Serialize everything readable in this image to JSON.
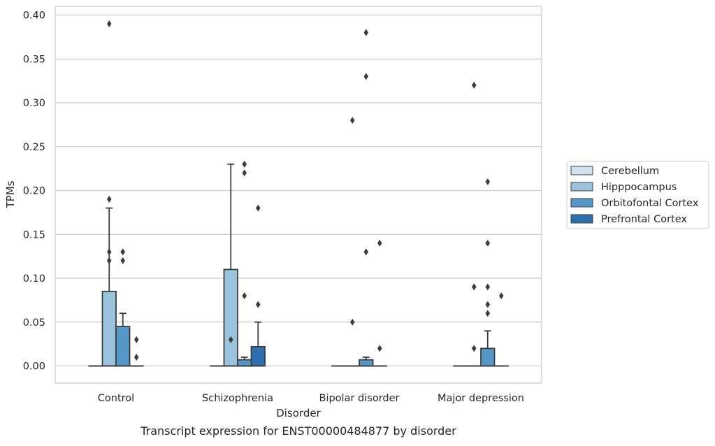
{
  "chart_data": {
    "type": "box",
    "caption": "Transcript expression for ENST00000484877 by disorder",
    "xlabel": "Disorder",
    "ylabel": "TPMs",
    "ylim": [
      -0.02,
      0.41
    ],
    "yticks": [
      "0.00",
      "0.05",
      "0.10",
      "0.15",
      "0.20",
      "0.25",
      "0.30",
      "0.35",
      "0.40"
    ],
    "ytick_values": [
      0,
      0.05,
      0.1,
      0.15,
      0.2,
      0.25,
      0.3,
      0.35,
      0.4
    ],
    "grid": "horizontal",
    "legend_placement": "right",
    "categories": [
      "Control",
      "Schizophrenia",
      "Bipolar disorder",
      "Major depression"
    ],
    "series": [
      {
        "name": "Cerebellum",
        "color": "#d1e1ef",
        "boxes": [
          {
            "min": 0,
            "q1": 0,
            "median": 0,
            "q3": 0,
            "max": 0,
            "outliers": []
          },
          {
            "min": 0,
            "q1": 0,
            "median": 0,
            "q3": 0,
            "max": 0,
            "outliers": []
          },
          {
            "min": 0,
            "q1": 0,
            "median": 0,
            "q3": 0,
            "max": 0,
            "outliers": []
          },
          {
            "min": 0,
            "q1": 0,
            "median": 0,
            "q3": 0,
            "max": 0,
            "outliers": []
          }
        ]
      },
      {
        "name": "Hipppocampus",
        "color": "#9ac3dd",
        "boxes": [
          {
            "min": 0,
            "q1": 0,
            "median": 0,
            "q3": 0.085,
            "max": 0.18,
            "outliers": [
              0.39,
              0.19,
              0.13,
              0.12
            ]
          },
          {
            "min": 0,
            "q1": 0,
            "median": 0,
            "q3": 0.11,
            "max": 0.23,
            "outliers": [
              0.03
            ]
          },
          {
            "min": 0,
            "q1": 0,
            "median": 0,
            "q3": 0,
            "max": 0,
            "outliers": [
              0.28,
              0.05
            ]
          },
          {
            "min": 0,
            "q1": 0,
            "median": 0,
            "q3": 0,
            "max": 0,
            "outliers": [
              0.32,
              0.09,
              0.02
            ]
          }
        ]
      },
      {
        "name": "Orbitofontal Cortex",
        "color": "#5597c6",
        "boxes": [
          {
            "min": 0,
            "q1": 0,
            "median": 0,
            "q3": 0.045,
            "max": 0.06,
            "outliers": [
              0.13,
              0.12
            ]
          },
          {
            "min": 0,
            "q1": 0,
            "median": 0,
            "q3": 0.007,
            "max": 0.01,
            "outliers": [
              0.23,
              0.22,
              0.08
            ]
          },
          {
            "min": 0,
            "q1": 0,
            "median": 0,
            "q3": 0.007,
            "max": 0.01,
            "outliers": [
              0.38,
              0.33,
              0.13
            ]
          },
          {
            "min": 0,
            "q1": 0,
            "median": 0,
            "q3": 0.02,
            "max": 0.04,
            "outliers": [
              0.21,
              0.14,
              0.09,
              0.07,
              0.06
            ]
          }
        ]
      },
      {
        "name": "Prefrontal Cortex",
        "color": "#2d6fae",
        "boxes": [
          {
            "min": 0,
            "q1": 0,
            "median": 0,
            "q3": 0,
            "max": 0,
            "outliers": [
              0.03,
              0.01
            ]
          },
          {
            "min": 0,
            "q1": 0,
            "median": 0,
            "q3": 0.022,
            "max": 0.05,
            "outliers": [
              0.18,
              0.07
            ]
          },
          {
            "min": 0,
            "q1": 0,
            "median": 0,
            "q3": 0,
            "max": 0,
            "outliers": [
              0.14,
              0.02
            ]
          },
          {
            "min": 0,
            "q1": 0,
            "median": 0,
            "q3": 0,
            "max": 0,
            "outliers": [
              0.08
            ]
          }
        ]
      }
    ]
  }
}
